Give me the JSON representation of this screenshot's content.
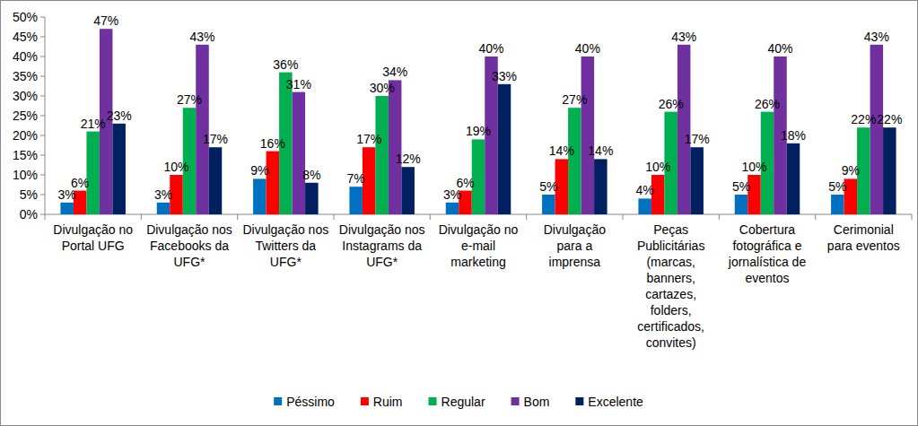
{
  "chart_data": {
    "type": "bar",
    "categories": [
      "Divulgação no Portal UFG",
      "Divulgação nos Facebooks da UFG*",
      "Divulgação nos Twitters da UFG*",
      "Divulgação nos Instagrams da UFG*",
      "Divulgação no e-mail marketing",
      "Divulgação para a imprensa",
      "Peças Publicitárias (marcas, banners, cartazes, folders, certificados, convites)",
      "Cobertura fotográfica e jornalística de eventos",
      "Cerimonial para eventos"
    ],
    "series": [
      {
        "name": "Péssimo",
        "color": "#0070c0",
        "values": [
          3,
          3,
          9,
          7,
          3,
          5,
          4,
          5,
          5
        ],
        "value_labels": [
          "3%",
          "3%",
          "9%",
          "7%",
          "3%",
          "5%",
          "4%",
          "5%",
          "5%"
        ]
      },
      {
        "name": "Ruim",
        "color": "#ff0000",
        "values": [
          6,
          10,
          16,
          17,
          6,
          14,
          10,
          10,
          9
        ],
        "value_labels": [
          "6%",
          "10%",
          "16%",
          "17%",
          "6%",
          "14%",
          "10%",
          "10%",
          "9%"
        ]
      },
      {
        "name": "Regular",
        "color": "#00b050",
        "values": [
          21,
          27,
          36,
          30,
          19,
          27,
          26,
          26,
          22
        ],
        "value_labels": [
          "21%",
          "27%",
          "36%",
          "30%",
          "19%",
          "27%",
          "26%",
          "26%",
          "22%"
        ]
      },
      {
        "name": "Bom",
        "color": "#7030a0",
        "values": [
          47,
          43,
          31,
          34,
          40,
          40,
          43,
          40,
          43
        ],
        "value_labels": [
          "47%",
          "43%",
          "31%",
          "34%",
          "40%",
          "40%",
          "43%",
          "40%",
          "43%"
        ]
      },
      {
        "name": "Excelente",
        "color": "#002060",
        "values": [
          23,
          17,
          8,
          12,
          33,
          14,
          17,
          18,
          22
        ],
        "value_labels": [
          "23%",
          "17%",
          "8%",
          "12%",
          "33%",
          "14%",
          "17%",
          "18%",
          "22%"
        ]
      }
    ],
    "ylim": [
      0,
      50
    ],
    "yticks": [
      {
        "value": 0,
        "label": "0%"
      },
      {
        "value": 5,
        "label": "5%"
      },
      {
        "value": 10,
        "label": "10%"
      },
      {
        "value": 15,
        "label": "15%"
      },
      {
        "value": 20,
        "label": "20%"
      },
      {
        "value": 25,
        "label": "25%"
      },
      {
        "value": 30,
        "label": "30%"
      },
      {
        "value": 35,
        "label": "35%"
      },
      {
        "value": 40,
        "label": "40%"
      },
      {
        "value": 45,
        "label": "45%"
      },
      {
        "value": 50,
        "label": "50%"
      }
    ],
    "grid": false,
    "legend": "bottom",
    "data_labels": true
  }
}
